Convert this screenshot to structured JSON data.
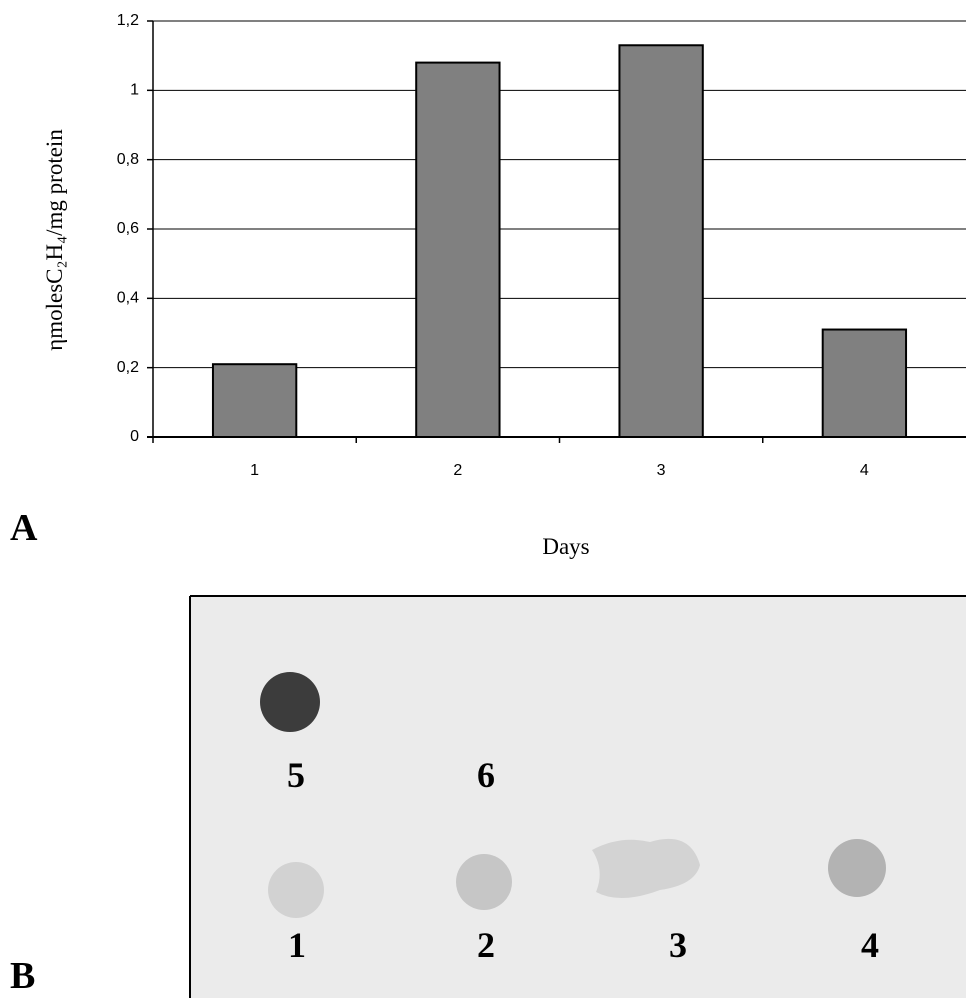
{
  "chart_data": {
    "type": "bar",
    "y_label": "ηmolesC₂H₄/mg protein",
    "x_label": "Days",
    "categories": [
      "1",
      "2",
      "3",
      "4"
    ],
    "values": [
      0.21,
      1.08,
      1.13,
      0.31
    ],
    "color": "#808080",
    "ylim": [
      0,
      1.2
    ],
    "yticks": [
      0,
      {
        "value": 0.2,
        "label": "0,2"
      },
      {
        "value": 0.4,
        "label": "0,4"
      },
      {
        "value": 0.6,
        "label": "0,6"
      },
      {
        "value": 0.8,
        "label": "0,8"
      },
      1,
      {
        "value": 1.2,
        "label": "1,2"
      }
    ],
    "grid": true
  },
  "panels": [
    "A",
    "B"
  ],
  "blot_labels": [
    "5",
    "6",
    "1",
    "2",
    "3",
    "4"
  ]
}
